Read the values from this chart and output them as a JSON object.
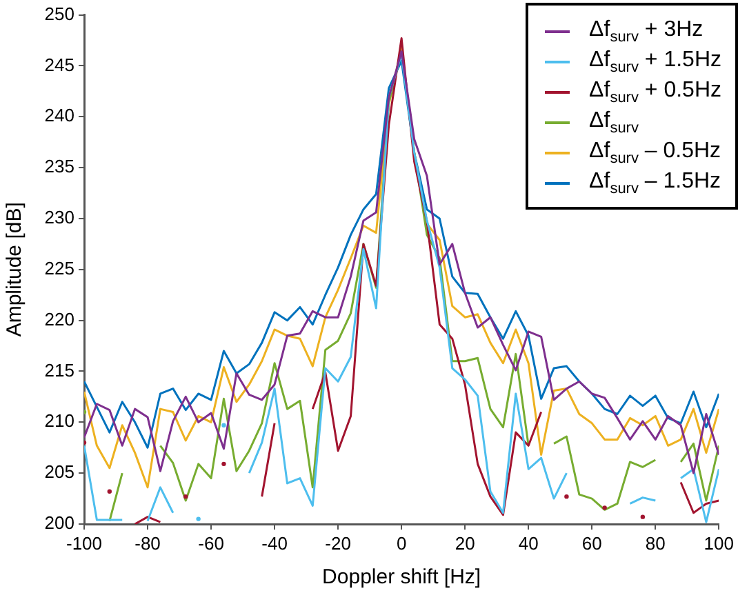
{
  "chart_data": {
    "type": "line",
    "xlabel": "Doppler shift [Hz]",
    "ylabel": "Amplitude [dB]",
    "x": [
      -100,
      -96,
      -92,
      -88,
      -84,
      -80,
      -76,
      -72,
      -68,
      -64,
      -60,
      -56,
      -52,
      -48,
      -44,
      -40,
      -36,
      -32,
      -28,
      -24,
      -20,
      -16,
      -12,
      -8,
      -4,
      0,
      4,
      8,
      12,
      16,
      20,
      24,
      28,
      32,
      36,
      40,
      44,
      48,
      52,
      56,
      60,
      64,
      68,
      72,
      76,
      80,
      84,
      88,
      92,
      96,
      100
    ],
    "xlim": [
      -100,
      100
    ],
    "xticks": [
      -100,
      -80,
      -60,
      -40,
      -20,
      0,
      20,
      40,
      60,
      80,
      100
    ],
    "ylim": [
      200,
      250
    ],
    "yticks": [
      200,
      205,
      210,
      215,
      220,
      225,
      230,
      235,
      240,
      245,
      250
    ],
    "grid": false,
    "legend": "top right",
    "marker": "none",
    "line_style": "solid",
    "series": [
      {
        "name": "Δf$_{surv}$ + 3Hz",
        "color": "#7e2f8e",
        "values": [
          208.5,
          211.8,
          211.2,
          207.7,
          211.3,
          210.5,
          205.2,
          210.1,
          212.5,
          210,
          210.9,
          207.4,
          214.8,
          212.7,
          212.2,
          213.7,
          218.5,
          218.7,
          220.9,
          220.3,
          220.3,
          224.3,
          229.8,
          230.6,
          241.9,
          246.4,
          237.8,
          234.2,
          225.5,
          227.5,
          222.7,
          219.3,
          220.3,
          217.6,
          215.1,
          218.9,
          218.4,
          212.2,
          213.3,
          214,
          212.8,
          212.4,
          210.4,
          208.3,
          210.1,
          208.3,
          210.6,
          209.7,
          205,
          210.8,
          206.8
        ]
      },
      {
        "name": "Δf$_{surv}$ + 1.5Hz",
        "color": "#4dbeee",
        "values": [
          207.7,
          200.4,
          200.4,
          200.4,
          null,
          200.3,
          203.6,
          201.1,
          null,
          200.5,
          null,
          209.7,
          null,
          205,
          208,
          213.3,
          204,
          204.5,
          201.8,
          215.3,
          214,
          216.4,
          227,
          221.2,
          241.9,
          246.2,
          236.5,
          229.8,
          225.2,
          215.3,
          214.2,
          212.6,
          203.2,
          201.1,
          212.8,
          205.4,
          206.5,
          202.5,
          205,
          null,
          null,
          null,
          null,
          202,
          202.6,
          202.3,
          null,
          204.5,
          205.4,
          200.2,
          205.4
        ]
      },
      {
        "name": "Δf$_{surv}$ + 0.5Hz",
        "color": "#a2142f",
        "values": [
          208,
          null,
          203.2,
          null,
          200,
          200.7,
          200.2,
          null,
          202.7,
          null,
          null,
          205.9,
          null,
          null,
          202.7,
          209.9,
          null,
          null,
          211.3,
          214.9,
          207.2,
          210.6,
          227.5,
          223.4,
          239.2,
          247.7,
          235.6,
          229.7,
          219.6,
          218.2,
          213.7,
          205.9,
          202.7,
          200.9,
          209,
          207.7,
          211,
          null,
          202.7,
          null,
          null,
          201.6,
          null,
          null,
          200.7,
          null,
          null,
          204.1,
          201.1,
          202,
          202.3
        ]
      },
      {
        "name": "Δf$_{surv}$",
        "color": "#77ac30",
        "values": [
          211,
          null,
          200.3,
          205,
          null,
          null,
          207.7,
          206,
          202.3,
          205.9,
          204.5,
          212.3,
          205.2,
          207.2,
          209.9,
          215.8,
          211.3,
          212.1,
          203.6,
          217.1,
          218,
          220.7,
          227.5,
          223.2,
          241.4,
          246.4,
          236.5,
          228.4,
          226.1,
          216,
          216,
          216.3,
          211.3,
          209.5,
          216.7,
          207.7,
          null,
          207.9,
          208.6,
          202.9,
          202.5,
          201.4,
          202,
          206.1,
          205.6,
          206.3,
          null,
          206.1,
          207.9,
          202.3,
          207.7
        ]
      },
      {
        "name": "Δf$_{surv}$ – 0.5Hz",
        "color": "#edb120",
        "values": [
          213,
          207.7,
          205.5,
          209.7,
          207,
          203.6,
          211.3,
          211,
          208.2,
          210.6,
          210,
          215.4,
          212,
          213.7,
          216,
          219.1,
          218.5,
          218.2,
          215.5,
          220.3,
          223,
          226.1,
          229.3,
          228.6,
          241.2,
          246.8,
          236.5,
          229.5,
          227.9,
          221.4,
          220.3,
          220.6,
          217.8,
          215.8,
          219.1,
          215.8,
          206.8,
          213.1,
          213.3,
          210.8,
          209.9,
          208.3,
          208.3,
          210.4,
          209.7,
          210.6,
          207.7,
          208.3,
          211.3,
          207,
          211.3
        ]
      },
      {
        "name": "Δf$_{surv}$ – 1.5Hz",
        "color": "#0072bd",
        "values": [
          214,
          211.5,
          209,
          212,
          210,
          207.5,
          212.8,
          213.3,
          211.2,
          212.8,
          212.2,
          217,
          214.8,
          215.7,
          217.8,
          220.8,
          220,
          221.3,
          219.6,
          222.5,
          225.2,
          228.4,
          230.9,
          232.4,
          242.8,
          245.5,
          236.5,
          230.9,
          230,
          224.3,
          222.7,
          222.6,
          220.3,
          218.2,
          220.9,
          218.5,
          212.3,
          215.3,
          215.5,
          214,
          212.8,
          211.3,
          210.8,
          212.6,
          211.6,
          212.6,
          210.4,
          209.9,
          213,
          209.5,
          212.8
        ]
      }
    ]
  }
}
